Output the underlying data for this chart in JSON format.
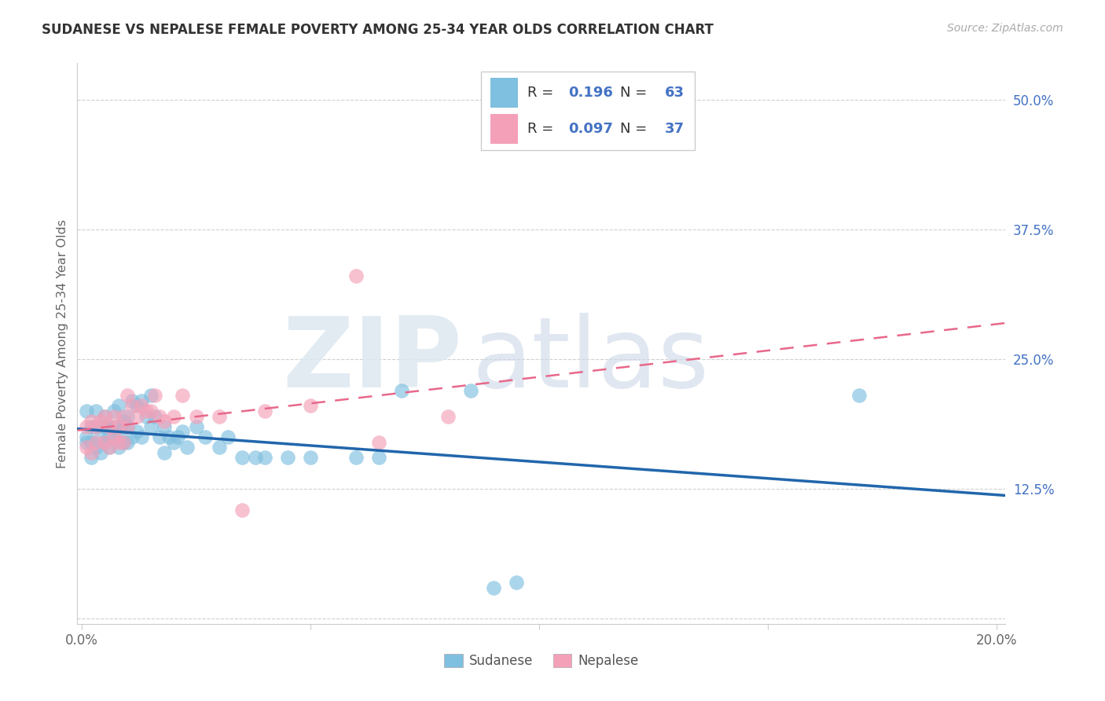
{
  "title": "SUDANESE VS NEPALESE FEMALE POVERTY AMONG 25-34 YEAR OLDS CORRELATION CHART",
  "source": "Source: ZipAtlas.com",
  "ylabel": "Female Poverty Among 25-34 Year Olds",
  "xlim": [
    -0.001,
    0.202
  ],
  "ylim": [
    -0.005,
    0.535
  ],
  "xtick_positions": [
    0.0,
    0.05,
    0.1,
    0.15,
    0.2
  ],
  "xticklabels": [
    "0.0%",
    "",
    "",
    "",
    "20.0%"
  ],
  "ytick_positions": [
    0.0,
    0.125,
    0.25,
    0.375,
    0.5
  ],
  "yticklabels_right": [
    "",
    "12.5%",
    "25.0%",
    "37.5%",
    "50.0%"
  ],
  "blue_scatter_color": "#7fbfdf",
  "pink_scatter_color": "#f4a0b8",
  "blue_line_color": "#2166ac",
  "pink_line_color": "#e8688a",
  "right_tick_color": "#4472c4",
  "R_blue": "0.196",
  "N_blue": "63",
  "R_pink": "0.097",
  "N_pink": "37",
  "legend_label_blue": "Sudanese",
  "legend_label_pink": "Nepalese",
  "sudanese_x": [
    0.001,
    0.001,
    0.001,
    0.002,
    0.002,
    0.002,
    0.003,
    0.003,
    0.003,
    0.004,
    0.004,
    0.005,
    0.005,
    0.005,
    0.006,
    0.006,
    0.006,
    0.007,
    0.007,
    0.007,
    0.008,
    0.008,
    0.008,
    0.009,
    0.009,
    0.009,
    0.01,
    0.01,
    0.01,
    0.011,
    0.011,
    0.012,
    0.012,
    0.013,
    0.013,
    0.014,
    0.015,
    0.015,
    0.016,
    0.017,
    0.018,
    0.018,
    0.019,
    0.02,
    0.021,
    0.022,
    0.023,
    0.025,
    0.027,
    0.03,
    0.032,
    0.035,
    0.038,
    0.04,
    0.045,
    0.05,
    0.06,
    0.065,
    0.07,
    0.085,
    0.09,
    0.095,
    0.17
  ],
  "sudanese_y": [
    0.17,
    0.175,
    0.2,
    0.155,
    0.185,
    0.17,
    0.165,
    0.185,
    0.2,
    0.16,
    0.175,
    0.17,
    0.185,
    0.195,
    0.165,
    0.175,
    0.185,
    0.175,
    0.185,
    0.2,
    0.165,
    0.18,
    0.205,
    0.17,
    0.185,
    0.19,
    0.17,
    0.185,
    0.195,
    0.175,
    0.21,
    0.18,
    0.205,
    0.175,
    0.21,
    0.195,
    0.185,
    0.215,
    0.195,
    0.175,
    0.16,
    0.185,
    0.175,
    0.17,
    0.175,
    0.18,
    0.165,
    0.185,
    0.175,
    0.165,
    0.175,
    0.155,
    0.155,
    0.155,
    0.155,
    0.155,
    0.155,
    0.155,
    0.22,
    0.22,
    0.03,
    0.035,
    0.215
  ],
  "nepalese_x": [
    0.001,
    0.001,
    0.002,
    0.002,
    0.003,
    0.003,
    0.004,
    0.005,
    0.005,
    0.006,
    0.006,
    0.007,
    0.007,
    0.008,
    0.008,
    0.009,
    0.009,
    0.01,
    0.01,
    0.011,
    0.012,
    0.013,
    0.014,
    0.015,
    0.016,
    0.017,
    0.018,
    0.02,
    0.022,
    0.025,
    0.03,
    0.035,
    0.04,
    0.05,
    0.06,
    0.065,
    0.08
  ],
  "nepalese_y": [
    0.165,
    0.185,
    0.16,
    0.19,
    0.17,
    0.185,
    0.19,
    0.17,
    0.195,
    0.165,
    0.185,
    0.175,
    0.195,
    0.17,
    0.185,
    0.17,
    0.195,
    0.185,
    0.215,
    0.205,
    0.195,
    0.205,
    0.2,
    0.2,
    0.215,
    0.195,
    0.19,
    0.195,
    0.215,
    0.195,
    0.195,
    0.105,
    0.2,
    0.205,
    0.33,
    0.17,
    0.195
  ]
}
